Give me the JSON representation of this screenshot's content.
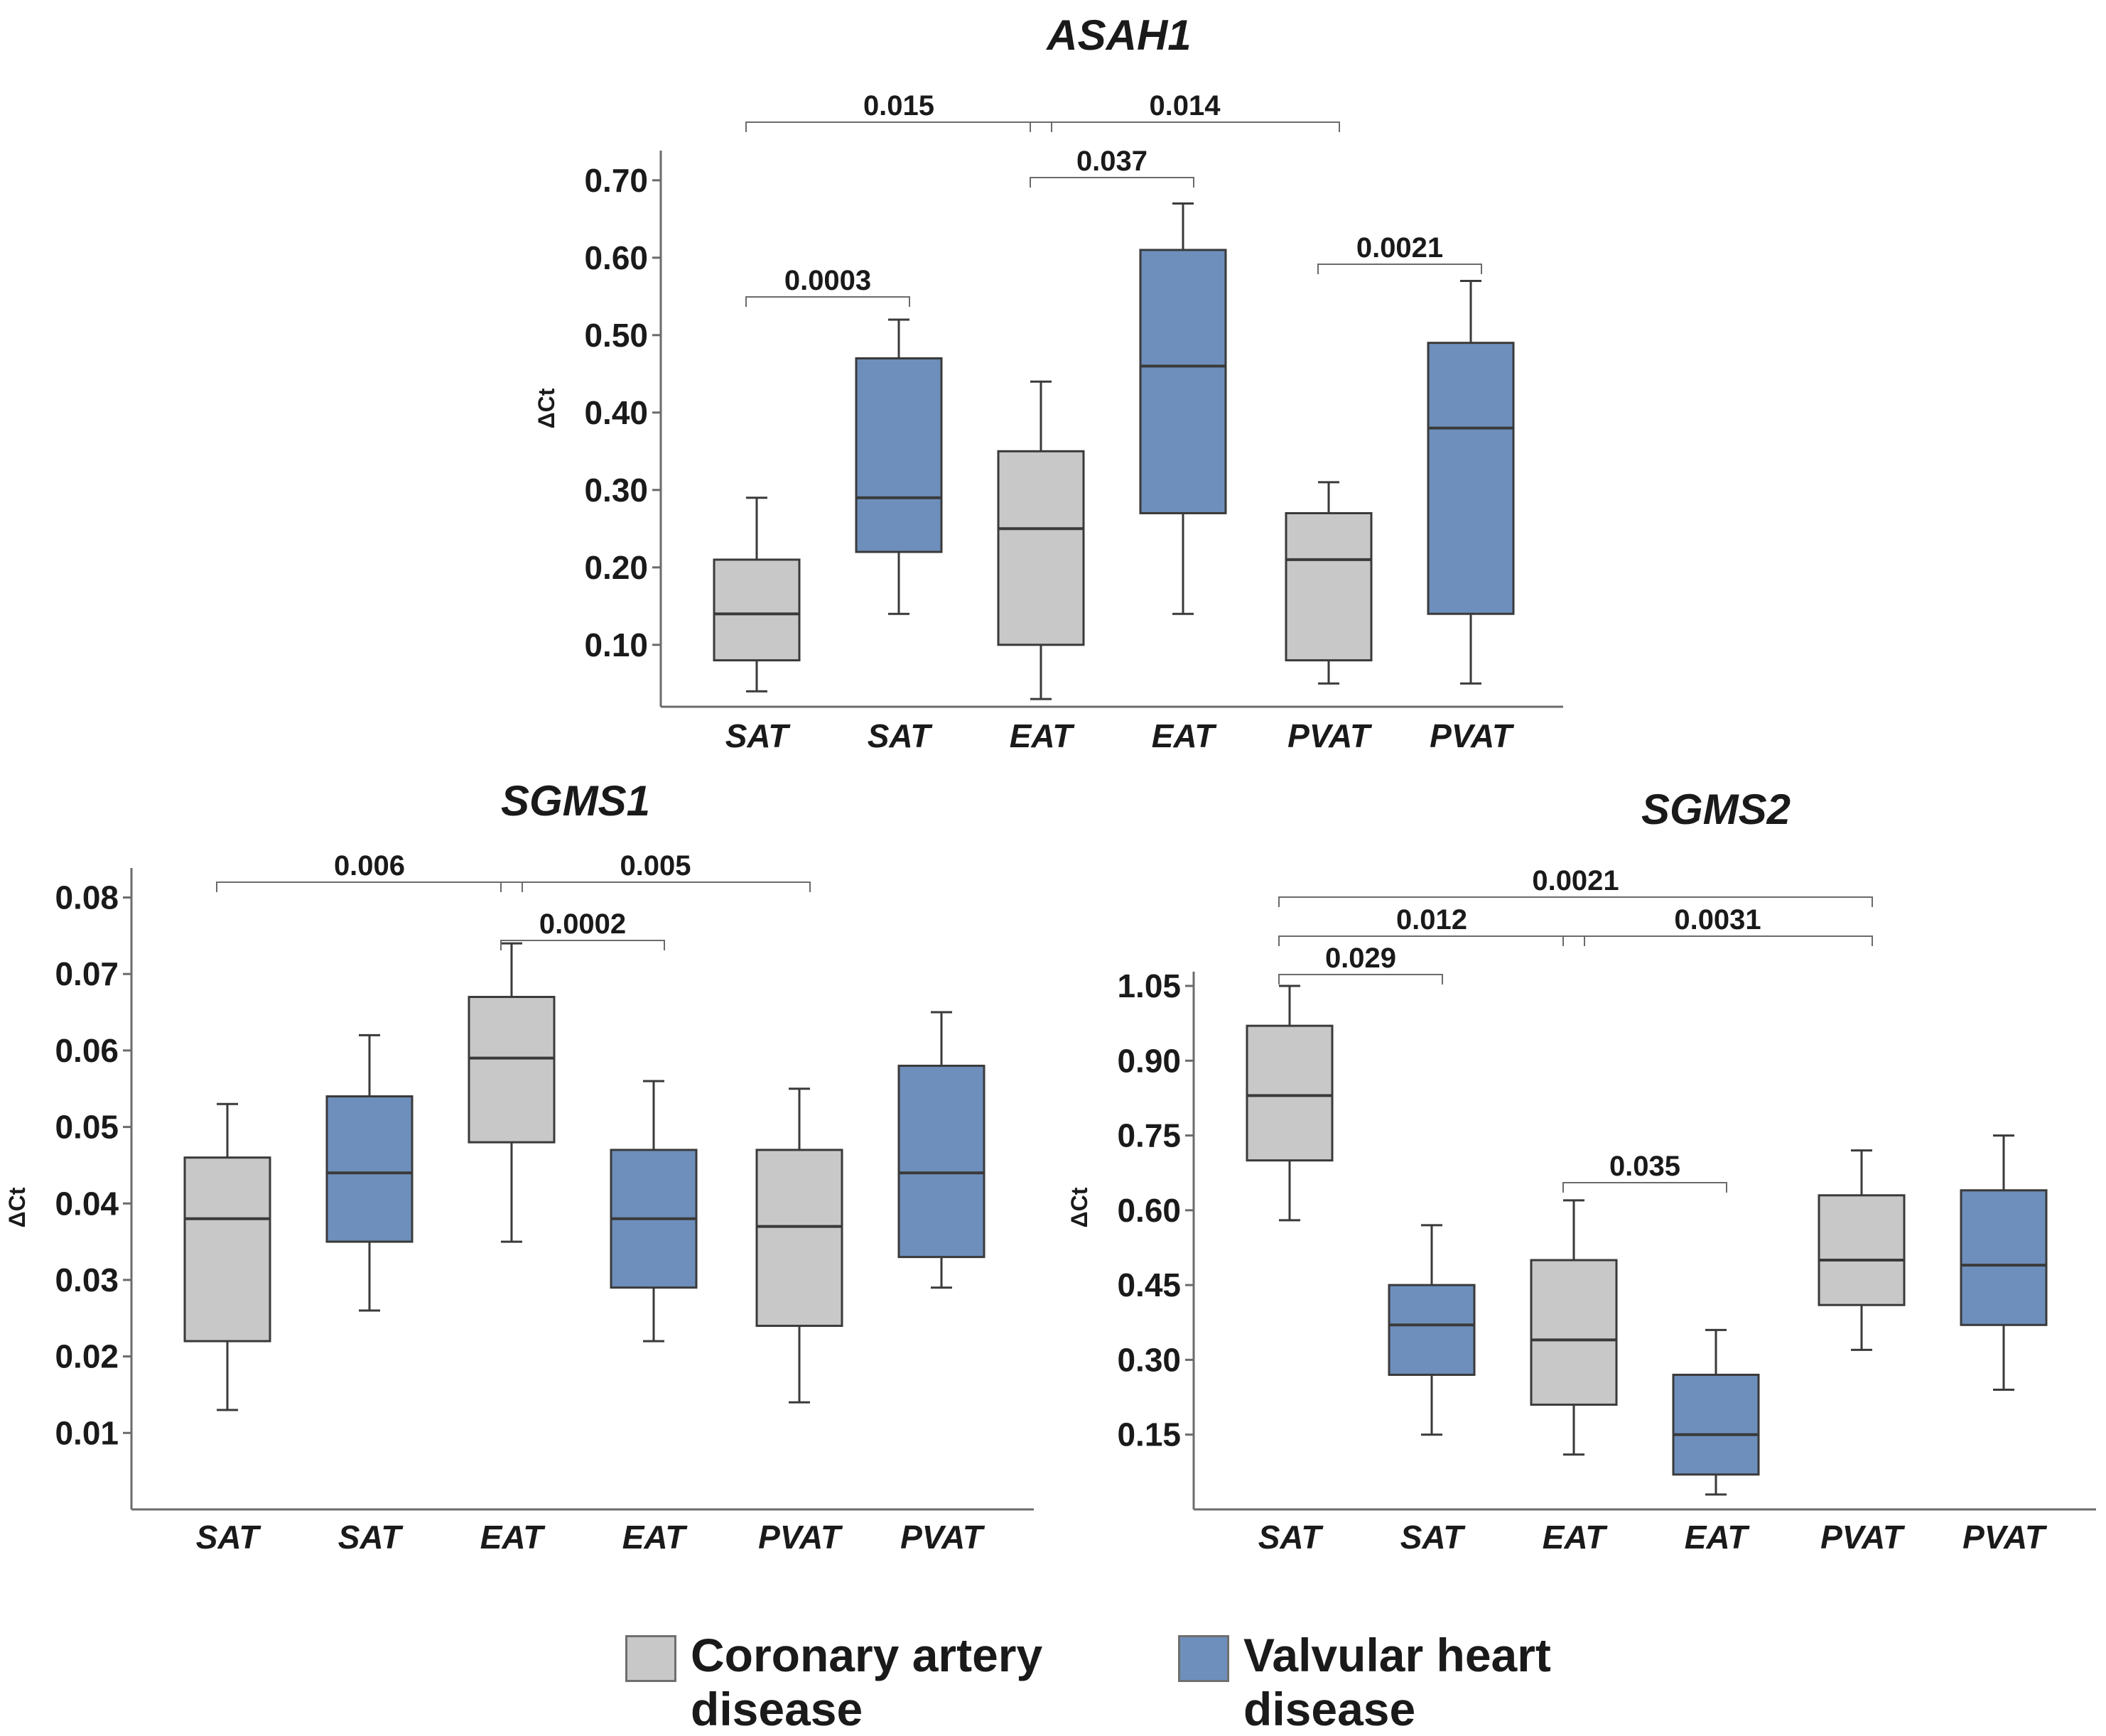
{
  "colors": {
    "cad": "#c8c8c8",
    "vhd": "#6e8fbc",
    "stroke": "#3a3a3a",
    "axis": "#6b6b6b",
    "text": "#1a1a1a"
  },
  "legend": [
    {
      "label": "Coronary artery disease",
      "color": "#c8c8c8"
    },
    {
      "label": "Valvular heart disease",
      "color": "#6e8fbc"
    }
  ],
  "chart_data": [
    {
      "id": "asah1",
      "type": "box",
      "title": "ASAH1",
      "ylabel": "ΔCt",
      "ylim": [
        0.02,
        0.72
      ],
      "yticks": [
        "0.10",
        "0.20",
        "0.30",
        "0.40",
        "0.50",
        "0.60",
        "0.70"
      ],
      "categories": [
        "SAT",
        "SAT",
        "EAT",
        "EAT",
        "PVAT",
        "PVAT"
      ],
      "groups": [
        "cad",
        "vhd",
        "cad",
        "vhd",
        "cad",
        "vhd"
      ],
      "boxes": [
        {
          "min": 0.04,
          "q1": 0.08,
          "median": 0.14,
          "q3": 0.21,
          "max": 0.29
        },
        {
          "min": 0.14,
          "q1": 0.22,
          "median": 0.29,
          "q3": 0.47,
          "max": 0.52
        },
        {
          "min": 0.03,
          "q1": 0.1,
          "median": 0.25,
          "q3": 0.35,
          "max": 0.44
        },
        {
          "min": 0.14,
          "q1": 0.27,
          "median": 0.46,
          "q3": 0.61,
          "max": 0.67
        },
        {
          "min": 0.05,
          "q1": 0.08,
          "median": 0.21,
          "q3": 0.27,
          "max": 0.31
        },
        {
          "min": 0.05,
          "q1": 0.14,
          "median": 0.38,
          "q3": 0.49,
          "max": 0.57
        }
      ],
      "brackets": [
        {
          "from": 0,
          "to": 2,
          "label": "0.015"
        },
        {
          "from": 2,
          "to": 4,
          "label": "0.014"
        },
        {
          "from": 2,
          "to": 3,
          "label": "0.037"
        },
        {
          "from": 0,
          "to": 1,
          "label": "0.0003"
        },
        {
          "from": 4,
          "to": 5,
          "label": "0.0021"
        }
      ]
    },
    {
      "id": "sgms1",
      "type": "box",
      "title": "SGMS1",
      "ylabel": "ΔCt",
      "ylim": [
        0.0,
        0.082
      ],
      "yticks": [
        "0.01",
        "0.02",
        "0.03",
        "0.04",
        "0.05",
        "0.06",
        "0.07",
        "0.08"
      ],
      "categories": [
        "SAT",
        "SAT",
        "EAT",
        "EAT",
        "PVAT",
        "PVAT"
      ],
      "groups": [
        "cad",
        "vhd",
        "cad",
        "vhd",
        "cad",
        "vhd"
      ],
      "boxes": [
        {
          "min": 0.013,
          "q1": 0.022,
          "median": 0.038,
          "q3": 0.046,
          "max": 0.053
        },
        {
          "min": 0.026,
          "q1": 0.035,
          "median": 0.044,
          "q3": 0.054,
          "max": 0.062
        },
        {
          "min": 0.035,
          "q1": 0.048,
          "median": 0.059,
          "q3": 0.067,
          "max": 0.074
        },
        {
          "min": 0.022,
          "q1": 0.029,
          "median": 0.038,
          "q3": 0.047,
          "max": 0.056
        },
        {
          "min": 0.014,
          "q1": 0.024,
          "median": 0.037,
          "q3": 0.047,
          "max": 0.055
        },
        {
          "min": 0.029,
          "q1": 0.033,
          "median": 0.044,
          "q3": 0.058,
          "max": 0.065
        }
      ],
      "brackets": [
        {
          "from": 0,
          "to": 2,
          "label": "0.006"
        },
        {
          "from": 2,
          "to": 4,
          "label": "0.005"
        },
        {
          "from": 2,
          "to": 3,
          "label": "0.0002"
        }
      ]
    },
    {
      "id": "sgms2",
      "type": "box",
      "title": "SGMS2",
      "ylabel": "ΔCt",
      "ylim": [
        0.0,
        1.05
      ],
      "yticks": [
        "0.15",
        "0.30",
        "0.45",
        "0.60",
        "0.75",
        "0.90",
        "1.05"
      ],
      "categories": [
        "SAT",
        "SAT",
        "EAT",
        "EAT",
        "PVAT",
        "PVAT"
      ],
      "groups": [
        "cad",
        "vhd",
        "cad",
        "vhd",
        "cad",
        "vhd"
      ],
      "boxes": [
        {
          "min": 0.58,
          "q1": 0.7,
          "median": 0.83,
          "q3": 0.97,
          "max": 1.05
        },
        {
          "min": 0.15,
          "q1": 0.27,
          "median": 0.37,
          "q3": 0.45,
          "max": 0.57
        },
        {
          "min": 0.11,
          "q1": 0.21,
          "median": 0.34,
          "q3": 0.5,
          "max": 0.62
        },
        {
          "min": 0.03,
          "q1": 0.07,
          "median": 0.15,
          "q3": 0.27,
          "max": 0.36
        },
        {
          "min": 0.32,
          "q1": 0.41,
          "median": 0.5,
          "q3": 0.63,
          "max": 0.72
        },
        {
          "min": 0.24,
          "q1": 0.37,
          "median": 0.49,
          "q3": 0.64,
          "max": 0.75
        }
      ],
      "brackets": [
        {
          "from": 0,
          "to": 4,
          "label": "0.0021"
        },
        {
          "from": 0,
          "to": 2,
          "label": "0.012"
        },
        {
          "from": 2,
          "to": 4,
          "label": "0.0031"
        },
        {
          "from": 0,
          "to": 1,
          "label": "0.029"
        },
        {
          "from": 2,
          "to": 3,
          "label": "0.035"
        }
      ]
    }
  ]
}
